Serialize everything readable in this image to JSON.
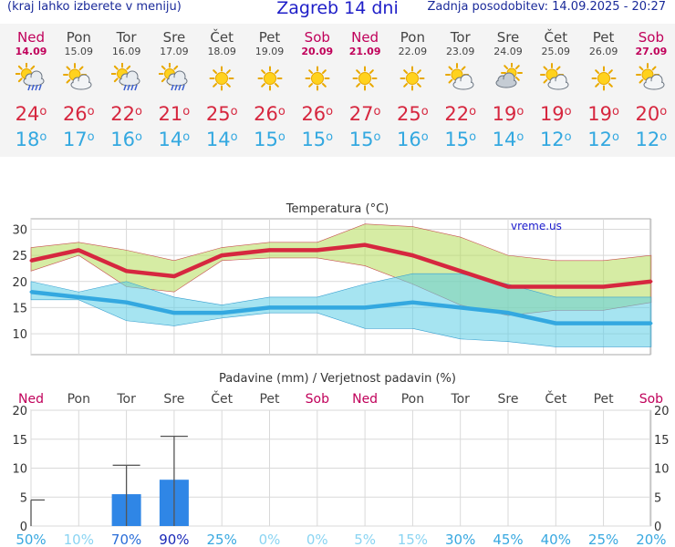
{
  "header": {
    "menu_hint": "(kraj lahko izberete v meniju)",
    "title": "Zagreb 14 dni",
    "updated": "Zadnja posodobitev: 14.09.2025 - 20:27"
  },
  "colors": {
    "max": "#d6273f",
    "min": "#33a8e0",
    "weekend": "#c0005a",
    "bar": "#2f86e6"
  },
  "days": [
    {
      "name": "Ned",
      "date": "14.09",
      "weekend": true,
      "icon": "sun-cloud-rain-icon",
      "max": "24",
      "min": "18"
    },
    {
      "name": "Pon",
      "date": "15.09",
      "weekend": false,
      "icon": "sun-cloud-icon",
      "max": "26",
      "min": "17"
    },
    {
      "name": "Tor",
      "date": "16.09",
      "weekend": false,
      "icon": "sun-cloud-rain-icon",
      "max": "22",
      "min": "16"
    },
    {
      "name": "Sre",
      "date": "17.09",
      "weekend": false,
      "icon": "sun-cloud-rain-icon",
      "max": "21",
      "min": "14"
    },
    {
      "name": "Čet",
      "date": "18.09",
      "weekend": false,
      "icon": "sun-icon",
      "max": "25",
      "min": "14"
    },
    {
      "name": "Pet",
      "date": "19.09",
      "weekend": false,
      "icon": "sun-icon",
      "max": "26",
      "min": "15"
    },
    {
      "name": "Sob",
      "date": "20.09",
      "weekend": true,
      "icon": "sun-icon",
      "max": "26",
      "min": "15"
    },
    {
      "name": "Ned",
      "date": "21.09",
      "weekend": true,
      "icon": "sun-icon",
      "max": "27",
      "min": "15"
    },
    {
      "name": "Pon",
      "date": "22.09",
      "weekend": false,
      "icon": "sun-icon",
      "max": "25",
      "min": "16"
    },
    {
      "name": "Tor",
      "date": "23.09",
      "weekend": false,
      "icon": "sun-cloud-icon",
      "max": "22",
      "min": "15"
    },
    {
      "name": "Sre",
      "date": "24.09",
      "weekend": false,
      "icon": "cloud-sun-icon",
      "max": "19",
      "min": "14"
    },
    {
      "name": "Čet",
      "date": "25.09",
      "weekend": false,
      "icon": "sun-cloud-icon",
      "max": "19",
      "min": "12"
    },
    {
      "name": "Pet",
      "date": "26.09",
      "weekend": false,
      "icon": "sun-icon",
      "max": "19",
      "min": "12"
    },
    {
      "name": "Sob",
      "date": "27.09",
      "weekend": true,
      "icon": "sun-cloud-icon",
      "max": "20",
      "min": "12"
    }
  ],
  "chart_data": [
    {
      "type": "line",
      "title": "Temperatura (°C)",
      "watermark": "vreme.us",
      "x": [
        "14.09",
        "15.09",
        "16.09",
        "17.09",
        "18.09",
        "19.09",
        "20.09",
        "21.09",
        "22.09",
        "23.09",
        "24.09",
        "25.09",
        "26.09",
        "27.09"
      ],
      "ylim": [
        6,
        32
      ],
      "yticks": [
        10,
        15,
        20,
        25,
        30
      ],
      "grid": true,
      "series": [
        {
          "role": "max",
          "values": [
            24,
            26,
            22,
            21,
            25,
            26,
            26,
            27,
            25,
            22,
            19,
            19,
            19,
            20
          ],
          "band_low": [
            22,
            25,
            19,
            18,
            24,
            24.5,
            24.5,
            23,
            19.5,
            15.5,
            13.5,
            14.5,
            14.5,
            16
          ],
          "band_high": [
            26.5,
            27.5,
            26,
            24,
            26.5,
            27.5,
            27.5,
            31,
            30.5,
            28.5,
            25,
            24,
            24,
            25
          ]
        },
        {
          "role": "min",
          "values": [
            18,
            17,
            16,
            14,
            14,
            15,
            15,
            15,
            16,
            15,
            14,
            12,
            12,
            12
          ],
          "band_low": [
            16.5,
            16.5,
            12.5,
            11.5,
            13,
            14,
            14,
            11,
            11,
            9,
            8.5,
            7.5,
            7.5,
            7.5
          ],
          "band_high": [
            20,
            18,
            20,
            17,
            15.5,
            17,
            17,
            19.5,
            21.5,
            21.5,
            19.5,
            17,
            17,
            17
          ]
        }
      ]
    },
    {
      "type": "bar",
      "title": "Padavine (mm) / Verjetnost padavin (%)",
      "categories": [
        "Ned",
        "Pon",
        "Tor",
        "Sre",
        "Čet",
        "Pet",
        "Sob",
        "Ned",
        "Pon",
        "Tor",
        "Sre",
        "Čet",
        "Pet",
        "Sob"
      ],
      "weekend": [
        true,
        false,
        false,
        false,
        false,
        false,
        true,
        true,
        false,
        false,
        false,
        false,
        false,
        true
      ],
      "values": [
        0,
        0,
        5.5,
        8,
        0,
        0,
        0,
        0,
        0,
        0,
        0,
        0,
        0,
        0
      ],
      "error_high": [
        4.5,
        0,
        10.5,
        15.5,
        0,
        0,
        0,
        0,
        0,
        0,
        0,
        0,
        0,
        0
      ],
      "probability": [
        "50%",
        "10%",
        "70%",
        "90%",
        "25%",
        "0%",
        "0%",
        "5%",
        "15%",
        "30%",
        "45%",
        "40%",
        "25%",
        "20%"
      ],
      "probability_values": [
        50,
        10,
        70,
        90,
        25,
        0,
        0,
        5,
        15,
        30,
        45,
        40,
        25,
        20
      ],
      "ylim": [
        0,
        20
      ],
      "yticks": [
        0,
        5,
        10,
        15,
        20
      ]
    }
  ]
}
